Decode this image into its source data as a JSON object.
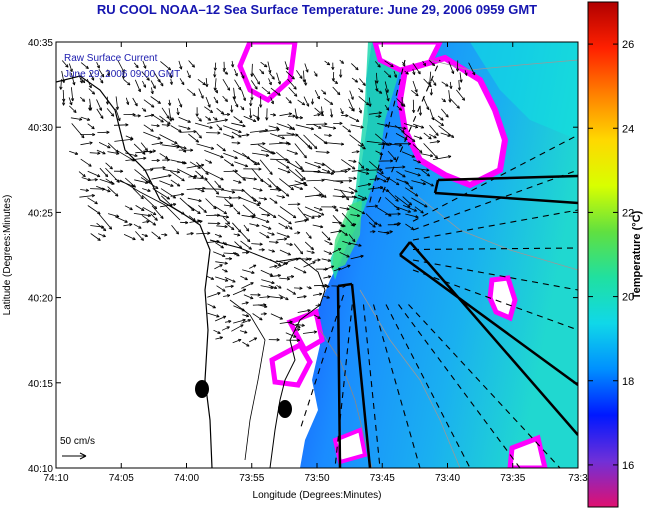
{
  "title": "RU COOL  NOAA–12  Sea Surface Temperature:  June 29, 2006 0959 GMT",
  "legend_text": {
    "line1": "Raw Surface Current",
    "line2": "June 29, 2006 09:00 GMT"
  },
  "scale_bar": {
    "label": "50 cm/s"
  },
  "axes": {
    "xlabel": "Longitude (Degrees:Minutes)",
    "ylabel": "Latitude (Degrees:Minutes)",
    "x_ticks": [
      "74:10",
      "74:05",
      "74:00",
      "73:55",
      "73:50",
      "73:45",
      "73:40",
      "73:35",
      "73:3"
    ],
    "y_ticks": [
      "40:35",
      "40:30",
      "40:25",
      "40:20",
      "40:15",
      "40:10"
    ]
  },
  "colorbar": {
    "label": "Temperature (°C)",
    "range": [
      15,
      27
    ],
    "ticks": [
      "26",
      "24",
      "22",
      "20",
      "18",
      "16"
    ],
    "tick_values": [
      26,
      24,
      22,
      20,
      18,
      16
    ],
    "colors": [
      "#e01070",
      "#7030d8",
      "#0018ff",
      "#0090ff",
      "#10d8e8",
      "#20e0a0",
      "#60e040",
      "#d8ff00",
      "#ffd800",
      "#ff8000",
      "#ff2000",
      "#b00000"
    ]
  },
  "colors": {
    "land": "#ffffff",
    "coast": "#000000",
    "title": "#1515b0",
    "legend": "#2020b0",
    "cloud": "#ffffff",
    "cloud_edge": "#ff00ff"
  }
}
